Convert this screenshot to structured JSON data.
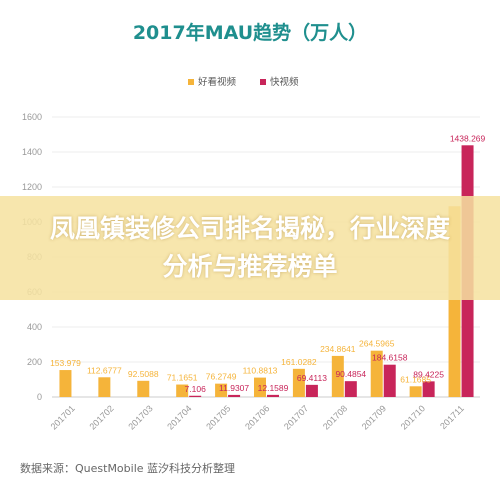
{
  "banner": {
    "text": "凤凰镇装修公司排名揭秘，行业深度分析与推荐榜单"
  },
  "source": "数据来源：QuestMobile 蓝汐科技分析整理",
  "chart_data": {
    "type": "bar",
    "title": "2017年MAU趋势（万人）",
    "categories": [
      "201701",
      "201702",
      "201703",
      "201704",
      "201705",
      "201706",
      "201707",
      "201708",
      "201709",
      "201710",
      "201711"
    ],
    "series": [
      {
        "name": "好看视频",
        "color": "#f5b43a",
        "values": [
          153.979,
          112.6777,
          92.5088,
          71.1651,
          76.2749,
          110.8813,
          161.0282,
          234.8641,
          264.5965,
          61.1685,
          1090
        ],
        "labels": [
          "153.979",
          "112.6777",
          "92.5088",
          "71.1651",
          "76.2749",
          "110.8813",
          "161.0282",
          "234.8641",
          "264.5965",
          "61.1685",
          ""
        ]
      },
      {
        "name": "快视频",
        "color": "#c8255a",
        "values": [
          0,
          0,
          0,
          7.106,
          11.9307,
          12.1589,
          69.4113,
          90.4854,
          184.6158,
          89.4225,
          1438.269
        ],
        "labels": [
          "",
          "",
          "",
          "7.106",
          "11.9307",
          "12.1589",
          "69.4113",
          "90.4854",
          "184.6158",
          "89.4225",
          "1438.269"
        ]
      }
    ],
    "ylim": [
      0,
      1600
    ],
    "yticks": [
      0,
      200,
      400,
      600,
      800,
      1000,
      1200,
      1400,
      1600
    ],
    "grid": true,
    "legend": "top-center"
  }
}
